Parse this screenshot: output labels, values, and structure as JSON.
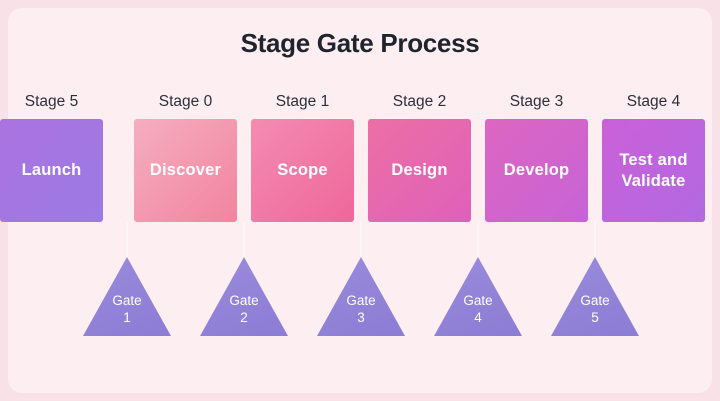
{
  "title": "Stage Gate Process",
  "colors": {
    "background": "#f9e2e7",
    "panel": "#fdeff1",
    "title_text": "#20242e",
    "stage_label_text": "#2b2f3a",
    "box_text": "#ffffff",
    "gate_fill": "#9183d8",
    "gate_text": "#ffffff",
    "connector_line": "#fdf6f6"
  },
  "stages": [
    {
      "stage_label": "Stage 0",
      "name": "Discover",
      "gradient_from": "#f5aec0",
      "gradient_to": "#f2849f"
    },
    {
      "stage_label": "Stage 1",
      "name": "Scope",
      "gradient_from": "#f48cb1",
      "gradient_to": "#ee679b"
    },
    {
      "stage_label": "Stage 2",
      "name": "Design",
      "gradient_from": "#ec6fa4",
      "gradient_to": "#df60ba"
    },
    {
      "stage_label": "Stage 3",
      "name": "Develop",
      "gradient_from": "#dd66c0",
      "gradient_to": "#c763d7"
    },
    {
      "stage_label": "Stage 4",
      "name": "Test and Validate",
      "gradient_from": "#cb60d8",
      "gradient_to": "#b169e2"
    },
    {
      "stage_label": "Stage 5",
      "name": "Launch",
      "gradient_from": "#aa73e0",
      "gradient_to": "#9c7ae4"
    }
  ],
  "gates": [
    {
      "label": "Gate",
      "number": "1"
    },
    {
      "label": "Gate",
      "number": "2"
    },
    {
      "label": "Gate",
      "number": "3"
    },
    {
      "label": "Gate",
      "number": "4"
    },
    {
      "label": "Gate",
      "number": "5"
    }
  ]
}
